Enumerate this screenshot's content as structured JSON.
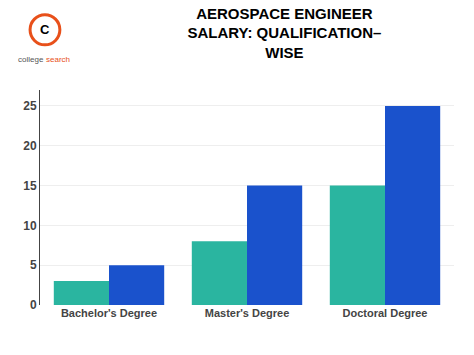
{
  "chart_data": {
    "type": "bar",
    "title": "AEROSPACE ENGINEER\nSALARY: QUALIFICATION–\nWISE",
    "categories": [
      "Bachelor's Degree",
      "Master's Degree",
      "Doctoral Degree"
    ],
    "series": [
      {
        "color": "#2AB5A0",
        "values": [
          3,
          8,
          15
        ]
      },
      {
        "color": "#1A52CC",
        "values": [
          5,
          15,
          25
        ]
      }
    ],
    "ylim": [
      0,
      27
    ],
    "yticks": [
      0,
      5,
      10,
      15,
      20,
      25
    ],
    "grid": true,
    "annotations": [
      "C",
      "college",
      "search"
    ]
  }
}
